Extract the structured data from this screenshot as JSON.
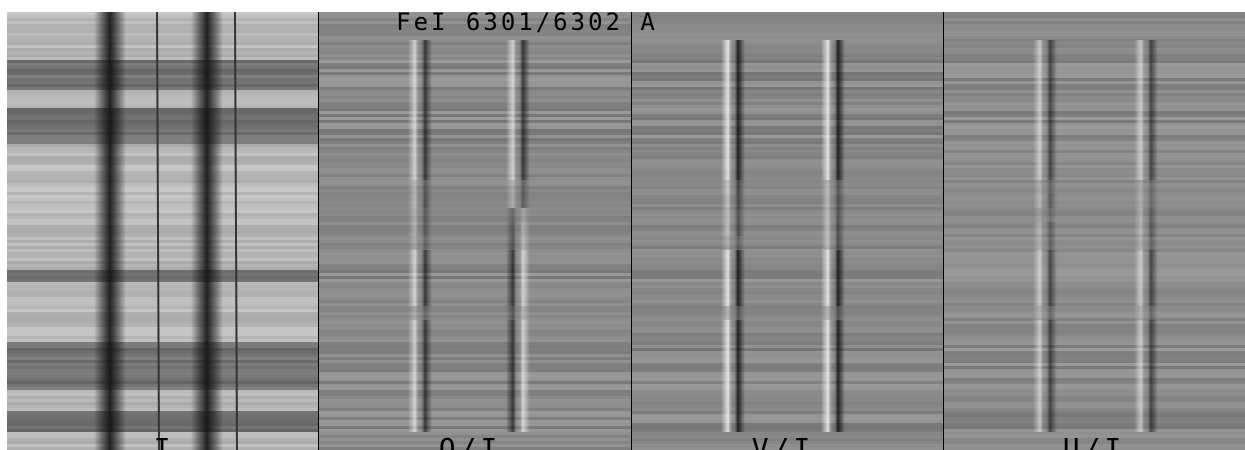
{
  "title": "FeI 6301/6302 A",
  "panels": [
    {
      "label": "I"
    },
    {
      "label": "Q/I"
    },
    {
      "label": "V/I"
    },
    {
      "label": "U/I"
    }
  ]
}
